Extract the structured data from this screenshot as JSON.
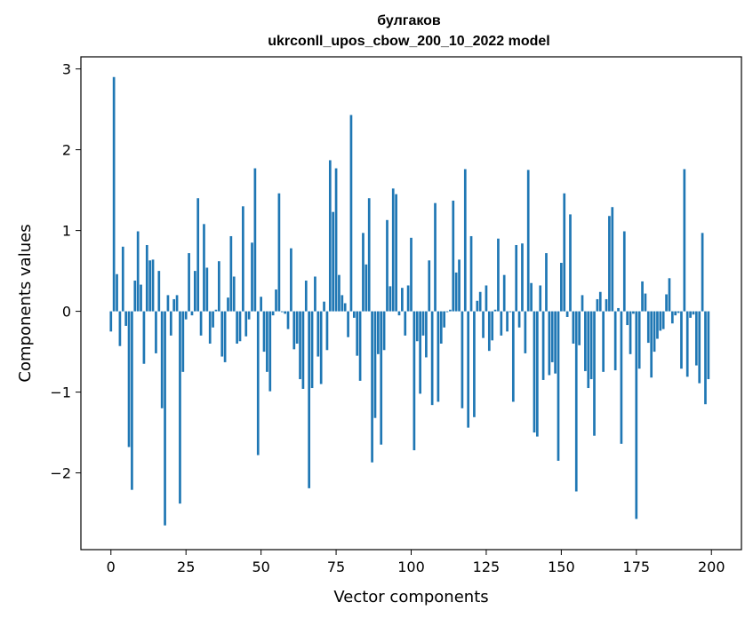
{
  "chart_data": {
    "type": "bar",
    "title": "булгаков",
    "subtitle": "ukrconll_upos_cbow_200_10_2022 model",
    "xlabel": "Vector components",
    "ylabel": "Components values",
    "xlim": [
      -10,
      210
    ],
    "ylim": [
      -2.95,
      3.15
    ],
    "xticks": [
      0,
      25,
      50,
      75,
      100,
      125,
      150,
      175,
      200
    ],
    "yticks": [
      -2,
      -1,
      0,
      1,
      2,
      3
    ],
    "grid": false,
    "legend": "none",
    "color": "#1f77b4",
    "x_start": 0,
    "values": [
      -0.25,
      2.9,
      0.46,
      -0.43,
      0.8,
      -0.18,
      -1.68,
      -2.21,
      0.38,
      0.99,
      0.33,
      -0.65,
      0.82,
      0.63,
      0.64,
      -0.52,
      0.5,
      -1.2,
      -2.65,
      0.2,
      -0.3,
      0.15,
      0.2,
      -2.38,
      -0.75,
      -0.1,
      0.72,
      -0.05,
      0.5,
      1.4,
      -0.3,
      1.08,
      0.54,
      -0.4,
      -0.2,
      0.02,
      0.62,
      -0.56,
      -0.63,
      0.17,
      0.93,
      0.43,
      -0.4,
      -0.37,
      1.3,
      -0.31,
      -0.1,
      0.85,
      1.77,
      -1.78,
      0.18,
      -0.5,
      -0.75,
      -0.99,
      -0.05,
      0.27,
      1.46,
      -0.01,
      -0.03,
      -0.22,
      0.78,
      -0.47,
      -0.4,
      -0.84,
      -0.96,
      0.38,
      -2.19,
      -0.95,
      0.43,
      -0.56,
      -0.9,
      0.12,
      -0.48,
      1.87,
      1.23,
      1.77,
      0.45,
      0.2,
      0.1,
      -0.32,
      2.43,
      -0.08,
      -0.55,
      -0.86,
      0.97,
      0.58,
      1.4,
      -1.87,
      -1.32,
      -0.53,
      -1.65,
      -0.48,
      1.13,
      0.31,
      1.52,
      1.45,
      -0.05,
      0.29,
      -0.3,
      0.32,
      0.91,
      -1.72,
      -0.37,
      -1.02,
      -0.3,
      -0.57,
      0.63,
      -1.16,
      1.34,
      -1.12,
      -0.4,
      -0.2,
      -0.01,
      0.02,
      1.37,
      0.48,
      0.64,
      -1.2,
      1.76,
      -1.44,
      0.93,
      -1.31,
      0.13,
      0.24,
      -0.33,
      0.32,
      -0.49,
      -0.36,
      0.02,
      0.9,
      -0.3,
      0.45,
      -0.25,
      -0.01,
      -1.12,
      0.82,
      -0.2,
      0.84,
      -0.52,
      1.75,
      0.35,
      -1.5,
      -1.55,
      0.32,
      -0.85,
      0.72,
      -0.79,
      -0.63,
      -0.77,
      -1.85,
      0.6,
      1.46,
      -0.07,
      1.2,
      -0.4,
      -2.23,
      -0.42,
      0.2,
      -0.74,
      -0.95,
      -0.84,
      -1.54,
      0.15,
      0.24,
      -0.75,
      0.15,
      1.18,
      1.29,
      -0.73,
      0.04,
      -1.64,
      0.99,
      -0.17,
      -0.53,
      -0.03,
      -2.57,
      -0.71,
      0.37,
      0.22,
      -0.39,
      -0.82,
      -0.5,
      -0.34,
      -0.24,
      -0.22,
      0.21,
      0.41,
      -0.15,
      -0.05,
      -0.02,
      -0.71,
      1.76,
      -0.81,
      -0.08,
      -0.04,
      -0.67,
      -0.89,
      0.97,
      -1.15,
      -0.84
    ]
  }
}
